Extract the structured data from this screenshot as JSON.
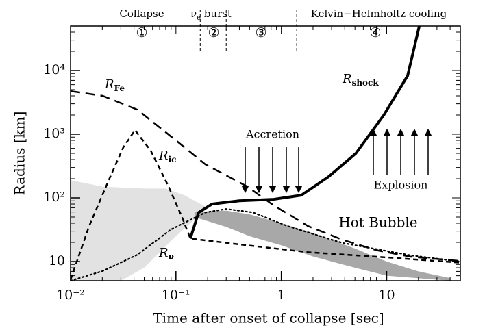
{
  "chart_data": {
    "type": "line",
    "xlabel": "Time after onset of collapse [sec]",
    "ylabel": "Radius [km]",
    "xscale": "log",
    "yscale": "log",
    "xlim": [
      0.01,
      50
    ],
    "ylim": [
      5,
      50000
    ],
    "xticks": [
      {
        "value": 0.01,
        "label": "10⁻²"
      },
      {
        "value": 0.1,
        "label": "10⁻¹"
      },
      1,
      10
    ],
    "yticks": [
      10,
      {
        "value": 100,
        "label": "10²"
      },
      {
        "value": 1000,
        "label": "10³"
      },
      {
        "value": 10000,
        "label": "10⁴"
      }
    ],
    "phase_boundaries": [
      0.17,
      0.3,
      1.4
    ],
    "phases": {
      "collapse": "Collapse",
      "p1": "①",
      "burst_nu": "ν",
      "burst_sub": "e",
      "burst": " burst",
      "p2": "②",
      "p3": "③",
      "kh": "Kelvin−Helmholtz cooling",
      "p4": "④"
    },
    "annotations": {
      "accretion": "Accretion",
      "explosion": "Explosion",
      "bubble": "Hot Bubble"
    },
    "areas": [
      {
        "color": "#e2e2e2",
        "x": [
          0.01,
          0.02,
          0.05,
          0.08,
          0.12,
          0.2,
          0.1,
          0.05,
          0.03,
          0.01
        ],
        "values": [
          190,
          150,
          140,
          140,
          110,
          70,
          25,
          8,
          5,
          5
        ]
      },
      {
        "color": "#a8a8a8",
        "x": [
          0.15,
          0.3,
          0.5,
          1,
          2,
          5,
          10,
          20,
          40,
          40,
          10,
          5,
          2,
          1,
          0.5,
          0.3,
          0.15
        ],
        "values": [
          60,
          63,
          55,
          40,
          28,
          16,
          10,
          7,
          5.5,
          5,
          6,
          8,
          12,
          18,
          25,
          35,
          50
        ]
      }
    ],
    "series": [
      {
        "name": "R",
        "sub": "Fe",
        "style": "longdash",
        "x": [
          0.01,
          0.0202,
          0.0428,
          0.1,
          0.19,
          0.47,
          0.85,
          1.8,
          3.8,
          8.1,
          17,
          50
        ],
        "values": [
          4750,
          4000,
          2440,
          800,
          336,
          152,
          76,
          36,
          22,
          15,
          11.9,
          10.2
        ]
      },
      {
        "name": "R",
        "sub": "ic",
        "style": "shortdash",
        "x": [
          0.01,
          0.015,
          0.0235,
          0.0317,
          0.0409,
          0.0576,
          0.0837,
          0.113,
          0.137,
          0.4,
          1.8,
          8.1,
          50
        ],
        "values": [
          5.2,
          36,
          205,
          625,
          1160,
          552,
          160,
          52,
          23,
          18.6,
          14,
          11.9,
          9.6
        ]
      },
      {
        "name": "R",
        "sub": "ν",
        "style": "dotted",
        "x": [
          0.01,
          0.0202,
          0.0428,
          0.09,
          0.19,
          0.3,
          0.54,
          1.15,
          3.8,
          17,
          50
        ],
        "values": [
          5,
          7.1,
          12.7,
          32,
          59,
          67,
          59,
          36,
          19.6,
          12.5,
          10
        ]
      },
      {
        "name": "R",
        "sub": "shock",
        "style": "solid",
        "x": [
          0.137,
          0.164,
          0.22,
          0.4,
          0.85,
          1.55,
          2.8,
          5.1,
          9.4,
          15.8,
          20.4
        ],
        "values": [
          23,
          59,
          80,
          90,
          95,
          110,
          214,
          500,
          2000,
          8300,
          50000
        ]
      }
    ]
  }
}
